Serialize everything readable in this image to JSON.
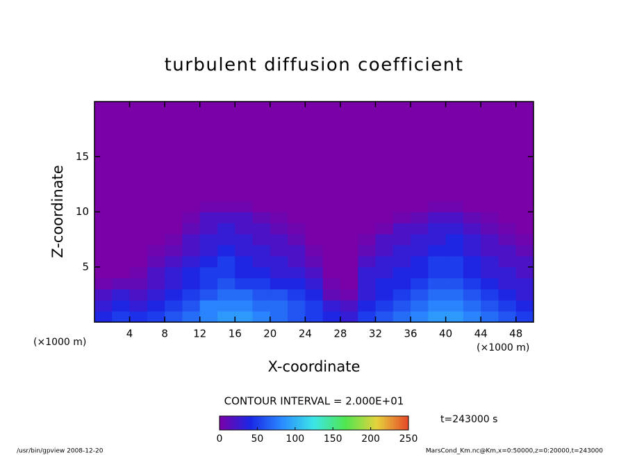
{
  "chart_data": {
    "type": "heatmap",
    "title": "turbulent diffusion coefficient",
    "x_label": "X-coordinate",
    "y_label": "Z-coordinate",
    "x_unit": "(×1000 m)",
    "xlim": [
      0,
      50
    ],
    "ylim": [
      0,
      20
    ],
    "xticks": [
      4,
      8,
      12,
      16,
      20,
      24,
      28,
      32,
      36,
      40,
      44,
      48
    ],
    "yticks": [
      5,
      10,
      15
    ],
    "x_edges": [
      0,
      2,
      4,
      6,
      8,
      10,
      12,
      14,
      16,
      18,
      20,
      22,
      24,
      26,
      28,
      30,
      32,
      34,
      36,
      38,
      40,
      42,
      44,
      46,
      48,
      50
    ],
    "z_edges": [
      0,
      1,
      2,
      3,
      4,
      5,
      6,
      7,
      8,
      9,
      10,
      11,
      20
    ],
    "values": [
      [
        40,
        50,
        45,
        50,
        60,
        70,
        80,
        90,
        90,
        80,
        70,
        60,
        50,
        40,
        30,
        50,
        60,
        70,
        80,
        90,
        90,
        80,
        70,
        60,
        50
      ],
      [
        30,
        40,
        30,
        40,
        50,
        60,
        80,
        80,
        80,
        70,
        70,
        60,
        50,
        30,
        20,
        40,
        50,
        60,
        70,
        80,
        80,
        70,
        60,
        50,
        40
      ],
      [
        20,
        30,
        20,
        30,
        40,
        50,
        60,
        70,
        70,
        60,
        60,
        50,
        40,
        10,
        5,
        30,
        40,
        50,
        60,
        70,
        70,
        60,
        50,
        40,
        30
      ],
      [
        5,
        10,
        10,
        20,
        30,
        40,
        50,
        60,
        50,
        50,
        40,
        40,
        30,
        5,
        0,
        30,
        40,
        40,
        50,
        60,
        60,
        50,
        40,
        30,
        30
      ],
      [
        0,
        0,
        5,
        20,
        30,
        40,
        50,
        50,
        40,
        40,
        30,
        30,
        20,
        0,
        0,
        30,
        30,
        40,
        40,
        50,
        50,
        40,
        30,
        30,
        20
      ],
      [
        0,
        0,
        0,
        10,
        20,
        30,
        40,
        50,
        40,
        30,
        30,
        20,
        10,
        0,
        0,
        20,
        30,
        30,
        40,
        50,
        50,
        40,
        30,
        20,
        20
      ],
      [
        0,
        0,
        0,
        5,
        10,
        20,
        30,
        40,
        30,
        30,
        20,
        20,
        5,
        0,
        0,
        10,
        20,
        30,
        30,
        40,
        40,
        30,
        20,
        20,
        10
      ],
      [
        0,
        0,
        0,
        0,
        5,
        20,
        30,
        30,
        30,
        20,
        20,
        10,
        0,
        0,
        0,
        5,
        20,
        20,
        30,
        30,
        40,
        30,
        20,
        10,
        5
      ],
      [
        0,
        0,
        0,
        0,
        0,
        10,
        20,
        30,
        20,
        20,
        10,
        5,
        0,
        0,
        0,
        0,
        5,
        20,
        20,
        30,
        30,
        20,
        10,
        5,
        0
      ],
      [
        0,
        0,
        0,
        0,
        0,
        5,
        20,
        20,
        20,
        10,
        5,
        0,
        0,
        0,
        0,
        0,
        0,
        5,
        10,
        20,
        20,
        10,
        5,
        0,
        0
      ],
      [
        0,
        0,
        0,
        0,
        0,
        0,
        5,
        5,
        5,
        0,
        0,
        0,
        0,
        0,
        0,
        0,
        0,
        0,
        0,
        5,
        5,
        0,
        0,
        0,
        0
      ],
      [
        0,
        0,
        0,
        0,
        0,
        0,
        0,
        0,
        0,
        0,
        0,
        0,
        0,
        0,
        0,
        0,
        0,
        0,
        0,
        0,
        0,
        0,
        0,
        0,
        0
      ]
    ],
    "clim": [
      0,
      250
    ],
    "colorbar_ticks": [
      0,
      50,
      100,
      150,
      200,
      250
    ],
    "colors": [
      "#7a00a8",
      "#1a28e6",
      "#2a8cff",
      "#3ce6e6",
      "#50e650",
      "#e6d23c",
      "#e64628"
    ],
    "contour_note": "CONTOUR INTERVAL = 2.000E+01",
    "time_note": "t=243000 s",
    "footer_left": "/usr/bin/gpview  2008-12-20",
    "footer_right": "MarsCond_Km.nc@Km,x=0:50000,z=0:20000,t=243000"
  }
}
